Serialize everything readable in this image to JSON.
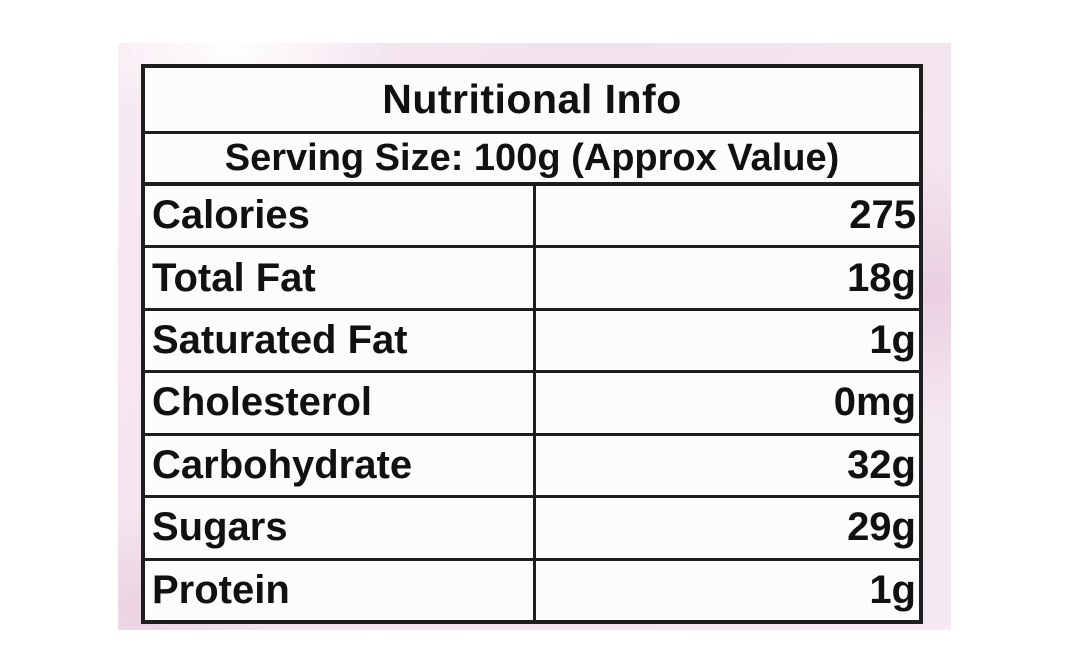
{
  "page": {
    "background_color": "#ffffff",
    "photo_background_color": "#f2e2ed"
  },
  "table": {
    "border_color": "#1e1e1e",
    "cell_background": "#fdfcfc",
    "text_color": "#111111",
    "title": "Nutritional Info",
    "serving_line": "Serving Size: 100g (Approx Value)",
    "rows": [
      {
        "label": "Calories",
        "value": "275"
      },
      {
        "label": "Total Fat",
        "value": "18g"
      },
      {
        "label": "Saturated Fat",
        "value": "1g"
      },
      {
        "label": "Cholesterol",
        "value": "0mg"
      },
      {
        "label": "Carbohydrate",
        "value": "32g"
      },
      {
        "label": "Sugars",
        "value": "29g"
      },
      {
        "label": "Protein",
        "value": "1g"
      }
    ]
  }
}
